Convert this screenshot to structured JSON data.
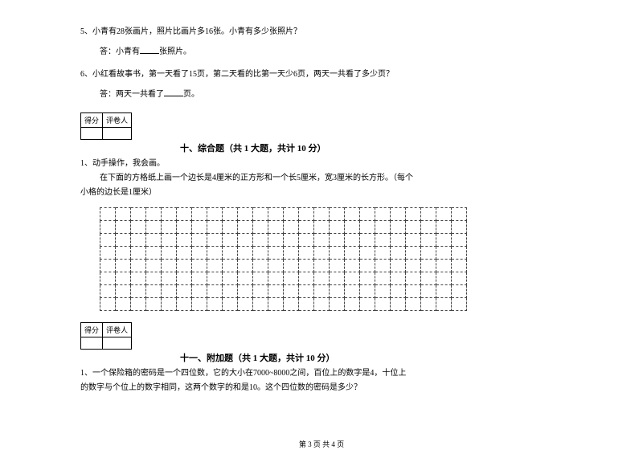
{
  "q5": {
    "num": "5、",
    "text": "小青有28张画片，照片比画片多16张。小青有多少张照片？",
    "answer_prefix": "答：小青有",
    "answer_suffix": "张照片。"
  },
  "q6": {
    "num": "6、",
    "text": "小红看故事书，第一天看了15页，第二天看的比第一天少6页，两天一共看了多少页？",
    "answer_prefix": "答：两天一共看了",
    "answer_suffix": "页。"
  },
  "score_header": {
    "col1": "得分",
    "col2": "评卷人"
  },
  "section10": {
    "title": "十、综合题（共 1 大题，共计 10 分）",
    "q1_num": "1、",
    "q1_text": "动手操作，我会画。",
    "q1_desc1": "在下面的方格纸上画一个边长是4厘米的正方形和一个长5厘米，宽3厘米的长方形。（每个",
    "q1_desc2": "小格的边长是1厘米）"
  },
  "section11": {
    "title": "十一、附加题（共 1 大题，共计 10 分）",
    "q1_num": "1、",
    "q1_text1": "一个保险箱的密码是一个四位数，它的大小在7000~8000之间，百位上的数字是4，十位上",
    "q1_text2": "的数字与个位上的数字相同，这两个数字的和是10。这个四位数的密码是多少？"
  },
  "grid": {
    "rows": 8,
    "cols": 24,
    "border_color": "#444444"
  },
  "footer": {
    "text": "第 3 页 共 4 页"
  }
}
